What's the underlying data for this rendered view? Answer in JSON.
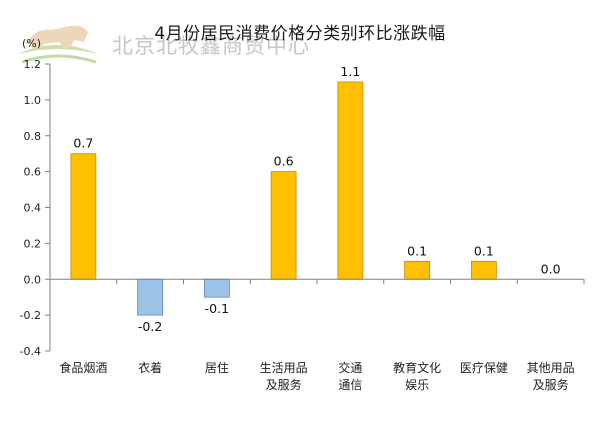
{
  "watermark": {
    "text": "北京北牧鑫商贸中心"
  },
  "chart_data": {
    "type": "bar",
    "title": "4月份居民消费价格分类别环比涨跌幅",
    "unit": "(%)",
    "categories": [
      [
        "食品烟酒"
      ],
      [
        "衣着"
      ],
      [
        "居住"
      ],
      [
        "生活用品",
        "及服务"
      ],
      [
        "交通",
        "通信"
      ],
      [
        "教育文化",
        "娱乐"
      ],
      [
        "医疗保健"
      ],
      [
        "其他用品",
        "及服务"
      ]
    ],
    "values": [
      0.7,
      -0.2,
      -0.1,
      0.6,
      1.1,
      0.1,
      0.1,
      0.0
    ],
    "data_labels": [
      "0.7",
      "-0.2",
      "-0.1",
      "0.6",
      "1.1",
      "0.1",
      "0.1",
      "0.0"
    ],
    "ylim": [
      -0.4,
      1.2
    ],
    "yticks": [
      "-0.4",
      "-0.2",
      "0.0",
      "0.2",
      "0.4",
      "0.6",
      "0.8",
      "1.0",
      "1.2"
    ],
    "grid": false,
    "legend": "none",
    "colors": {
      "positive": "#FFC000",
      "positive_stroke": "#C98A00",
      "negative": "#9DC3E6",
      "negative_stroke": "#5B8DB8",
      "axis": "#808080"
    }
  }
}
